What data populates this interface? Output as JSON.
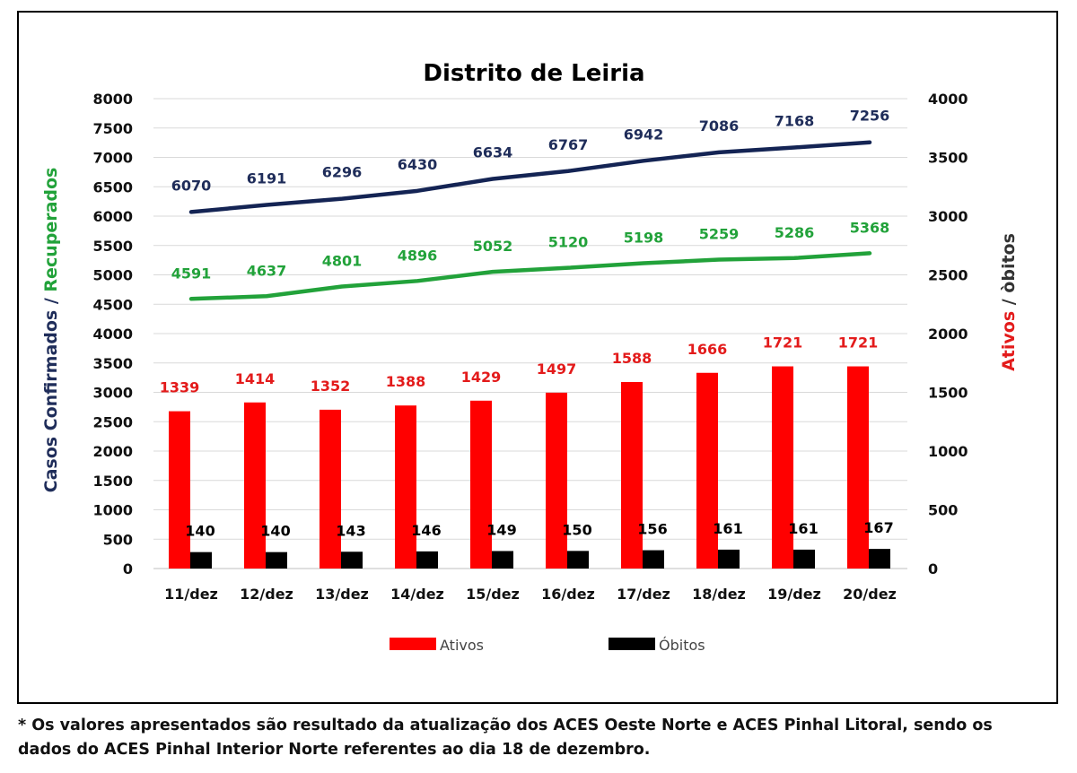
{
  "chart_data": {
    "type": "bar",
    "title": "Distrito de Leiria",
    "categories": [
      "11/dez",
      "12/dez",
      "13/dez",
      "14/dez",
      "15/dez",
      "16/dez",
      "17/dez",
      "18/dez",
      "19/dez",
      "20/dez"
    ],
    "y_left": {
      "label_parts": [
        {
          "text": "Casos Confirmados",
          "color": "#1f2d5a"
        },
        {
          "text": " / ",
          "color": "#1f2d5a"
        },
        {
          "text": "Recuperados",
          "color": "#22a23a"
        }
      ],
      "ticks": [
        "0",
        "500",
        "1000",
        "1500",
        "2000",
        "2500",
        "3000",
        "3500",
        "4000",
        "4500",
        "5000",
        "5500",
        "6000",
        "6500",
        "7000",
        "7500",
        "8000"
      ],
      "ylim": [
        0,
        8000
      ]
    },
    "y_right": {
      "label_parts": [
        {
          "text": "Ativos",
          "color": "#e31b1b"
        },
        {
          "text": " / òbitos",
          "color": "#333333"
        }
      ],
      "ticks": [
        "0",
        "500",
        "1000",
        "1500",
        "2000",
        "2500",
        "3000",
        "3500",
        "4000"
      ],
      "ylim": [
        0,
        4000
      ]
    },
    "series": [
      {
        "key": "confirmados",
        "type": "line",
        "axis": "left",
        "color": "#142454",
        "values": [
          6070,
          6191,
          6296,
          6430,
          6634,
          6767,
          6942,
          7086,
          7168,
          7256
        ]
      },
      {
        "key": "recuperados",
        "type": "line",
        "axis": "left",
        "color": "#22a23a",
        "values": [
          4591,
          4637,
          4801,
          4896,
          5052,
          5120,
          5198,
          5259,
          5286,
          5368
        ]
      },
      {
        "key": "ativos",
        "name": "Ativos",
        "type": "bar",
        "axis": "right",
        "color": "#ff0000",
        "label_color": "#e31b1b",
        "values": [
          1339,
          1414,
          1352,
          1388,
          1429,
          1497,
          1588,
          1666,
          1721,
          1721
        ]
      },
      {
        "key": "obitos",
        "name": "Óbitos",
        "type": "bar",
        "axis": "right",
        "color": "#000000",
        "label_color": "#000000",
        "values": [
          140,
          140,
          143,
          146,
          149,
          150,
          156,
          161,
          161,
          167
        ]
      }
    ],
    "legend": {
      "placement": "bottom",
      "items": [
        "Ativos",
        "Óbitos"
      ]
    },
    "grid": true
  },
  "footnote": {
    "line1": "* Os valores apresentados são resultado da atualização dos ACES Oeste Norte e ACES Pinhal Litoral, sendo os",
    "line2": "dados do ACES Pinhal Interior Norte referentes ao dia 18 de dezembro."
  }
}
